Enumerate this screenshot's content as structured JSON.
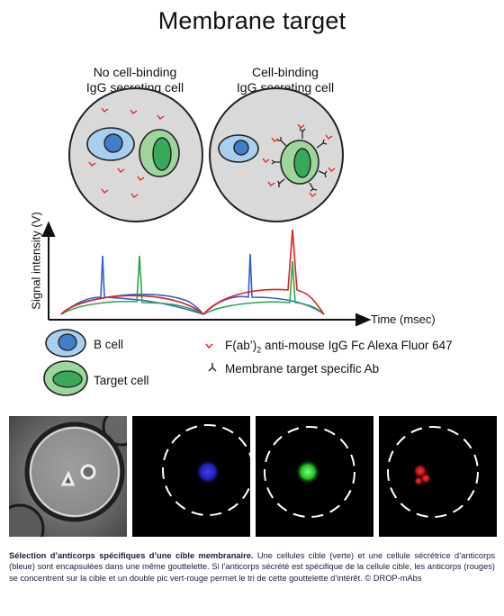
{
  "title": "Membrane target",
  "scenarios": {
    "left_label_line1": "No cell-binding",
    "left_label_line2": "IgG secreting cell",
    "right_label_line1": "Cell-binding",
    "right_label_line2": "IgG secreting cell"
  },
  "plot": {
    "ylabel": "Signal intensity (V)",
    "xlabel": "Time (msec)"
  },
  "legend": {
    "b_cell": "B cell",
    "target_cell": "Target cell",
    "fab_prefix": "F(ab’)",
    "fab_sub": "2",
    "fab_suffix": " anti-mouse IgG Fc Alexa Fluor 647",
    "membrane_ab": "Membrane target specific Ab"
  },
  "colors": {
    "blue_signal": "#2f5fd0",
    "green_signal": "#2aa84a",
    "red_signal": "#e02020",
    "droplet_fill": "#d9d9d9",
    "bcell_outer": "#a9cfee",
    "bcell_inner": "#3f7fc8",
    "target_outer": "#9dd59d",
    "target_inner": "#3aa85a"
  },
  "caption": {
    "bold": "Sélection d’anticorps spécifiques d’une cible membranaire.",
    "text": " Une cellules cible (verte) et une cellule sécrétrice d’anticorps (bleue) sont encapsulées dans une même gouttelette. Si l’anticorps sécrété est spécifique de la cellule cible, les anticorps (rouges) se concentrent sur la cible et un double pic vert-rouge permet le tri de cette gouttelette d’intérêt. © DROP-mAbs"
  }
}
